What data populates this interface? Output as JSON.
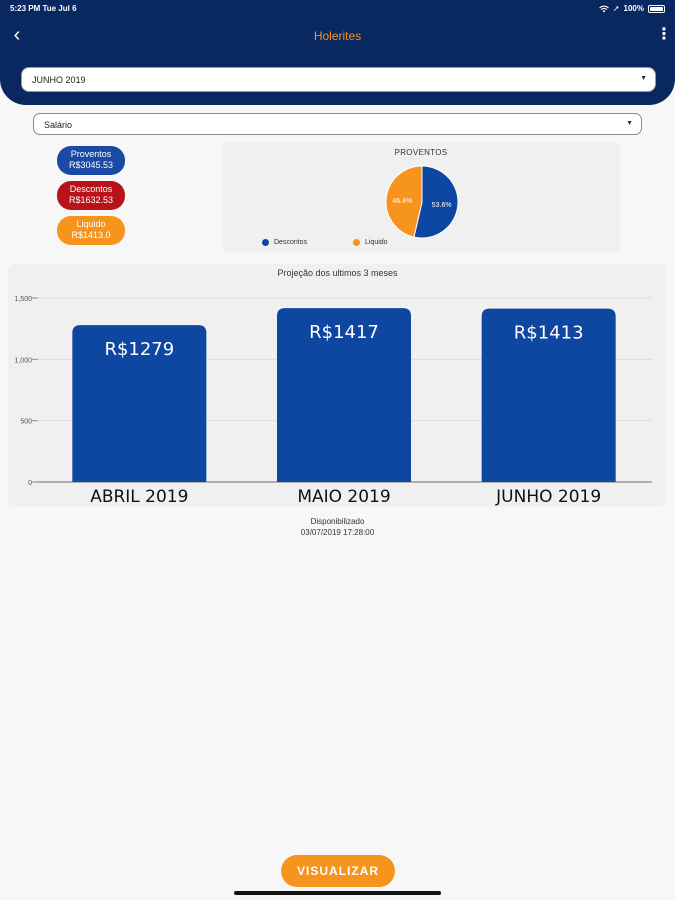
{
  "status_bar": {
    "time_date": "5:23 PM   Tue Jul 6",
    "battery": "100%"
  },
  "header": {
    "title": "Holerites",
    "back_icon": "chevron-left-icon",
    "more_icon": "more-vertical-icon"
  },
  "colors": {
    "header": "#0a2860",
    "accent": "#f7941d",
    "proventos": "#1a4aa6",
    "descontos": "#b8121a",
    "liquido": "#f7941d",
    "bar": "#0d47a1"
  },
  "month_select": {
    "value": "JUNHO 2019"
  },
  "type_select": {
    "value": "Salário"
  },
  "summary": [
    {
      "label": "Proventos",
      "value": "R$3045.53"
    },
    {
      "label": "Descontos",
      "value": "R$1632.53"
    },
    {
      "label": "Liquido",
      "value": "R$1413.0"
    }
  ],
  "chart_data": [
    {
      "type": "pie",
      "title": "PROVENTOS",
      "slices": [
        {
          "name": "Descontos",
          "value": 53.6,
          "label": "53.6%",
          "color": "#0d47a1"
        },
        {
          "name": "Liquido",
          "value": 46.4,
          "label": "46.4%",
          "color": "#f7941d"
        }
      ],
      "legend_placement": "bottom"
    },
    {
      "type": "bar",
      "title": "Projeção dos ultimos 3 meses",
      "categories": [
        "ABRIL 2019",
        "MAIO 2019",
        "JUNHO 2019"
      ],
      "values": [
        1279,
        1417,
        1413
      ],
      "data_labels": [
        "R$1279",
        "R$1417",
        "R$1413"
      ],
      "ylim": [
        0,
        1500
      ],
      "yticks": [
        0,
        500,
        1000,
        1500
      ],
      "ytick_labels": [
        "0",
        "500",
        "1,000",
        "1,500"
      ],
      "grid": true
    }
  ],
  "release": {
    "label": "Disponibilizado",
    "datetime": "03/07/2019 17:28:00"
  },
  "action": {
    "label": "VISUALIZAR"
  }
}
